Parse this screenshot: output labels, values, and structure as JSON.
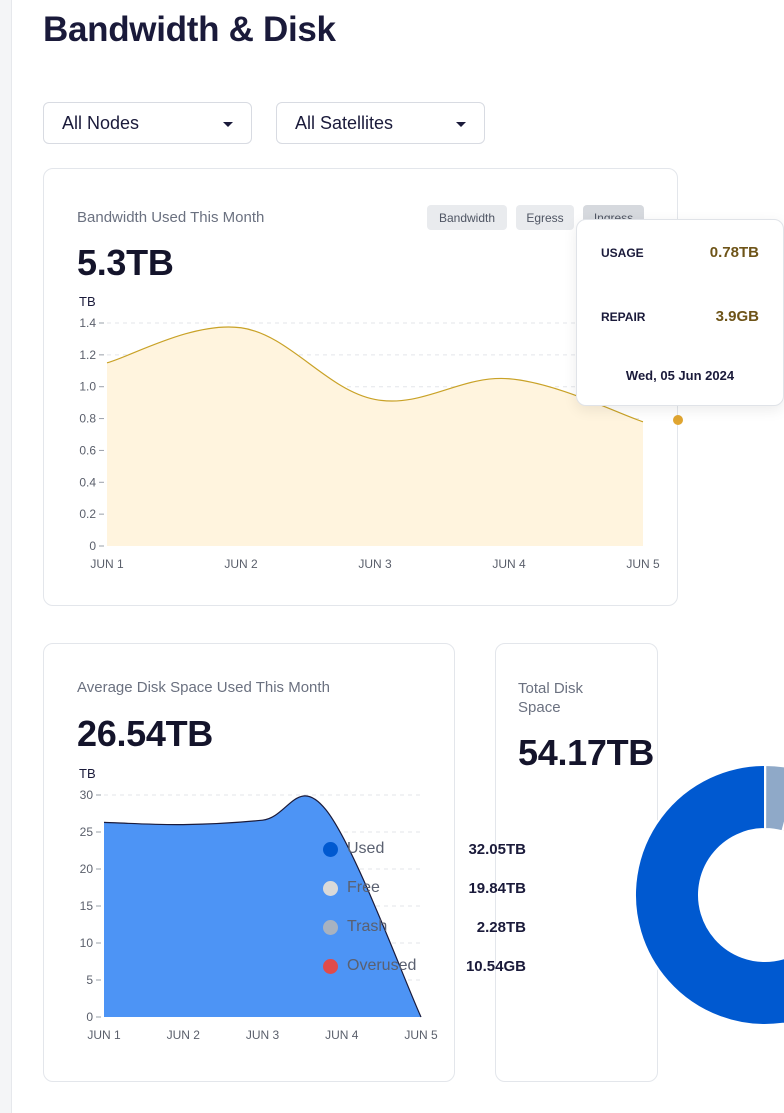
{
  "page": {
    "title": "Bandwidth & Disk"
  },
  "filters": {
    "nodes": {
      "value": "All Nodes"
    },
    "satellites": {
      "value": "All Satellites"
    }
  },
  "bandwidth": {
    "label": "Bandwidth Used This Month",
    "total": "5.3TB",
    "unit": "TB",
    "chips": [
      {
        "label": "Bandwidth",
        "active": false
      },
      {
        "label": "Egress",
        "active": false
      },
      {
        "label": "Ingress",
        "active": true
      }
    ],
    "tooltip": {
      "usage_label": "USAGE",
      "usage_value": "0.78TB",
      "repair_label": "REPAIR",
      "repair_value": "3.9GB",
      "date": "Wed, 05 Jun 2024"
    },
    "colors": {
      "line": "#c9a227",
      "fill": "#fff4de",
      "marker": "#e0a530"
    }
  },
  "disk": {
    "label": "Average Disk Space Used This Month",
    "total": "26.54TB",
    "unit": "TB",
    "colors": {
      "fill": "#4d94f5",
      "line": "#1a1a3a"
    }
  },
  "total_disk": {
    "label": "Total Disk Space",
    "value": "54.17TB",
    "legend": [
      {
        "label": "Used",
        "value": "32.05TB",
        "color": "#0059d0"
      },
      {
        "label": "Free",
        "value": "19.84TB",
        "color": "#d9d9d9"
      },
      {
        "label": "Trash",
        "value": "2.28TB",
        "color": "#8fa9c8"
      },
      {
        "label": "Overused",
        "value": "10.54GB",
        "color": "#e04b4b"
      }
    ]
  },
  "chart_data": [
    {
      "type": "area",
      "title": "Bandwidth Used This Month",
      "ylabel": "TB",
      "categories": [
        "JUN 1",
        "JUN 2",
        "JUN 3",
        "JUN 4",
        "JUN 5"
      ],
      "x": [
        1,
        2,
        3,
        4,
        5
      ],
      "values": [
        1.15,
        1.37,
        0.92,
        1.05,
        0.78
      ],
      "ylim": [
        0,
        1.4
      ],
      "yticks": [
        "0",
        "0.2",
        "0.4",
        "0.6",
        "0.8",
        "1.0",
        "1.2",
        "1.4"
      ],
      "grid": true
    },
    {
      "type": "area",
      "title": "Average Disk Space Used This Month",
      "ylabel": "TB",
      "categories": [
        "JUN 1",
        "JUN 2",
        "JUN 3",
        "JUN 4",
        "JUN 5"
      ],
      "x": [
        1,
        2,
        3,
        3.8,
        5
      ],
      "values": [
        26.3,
        26.0,
        26.6,
        28.0,
        0
      ],
      "ylim": [
        0,
        30
      ],
      "yticks": [
        "0",
        "5",
        "10",
        "15",
        "20",
        "25",
        "30"
      ],
      "grid": true
    },
    {
      "type": "pie",
      "title": "Total Disk Space",
      "categories": [
        "Used",
        "Free",
        "Trash",
        "Overused"
      ],
      "values": [
        32.05,
        19.84,
        2.28,
        0.01054
      ],
      "units": [
        "TB",
        "TB",
        "TB",
        "TB"
      ]
    }
  ]
}
